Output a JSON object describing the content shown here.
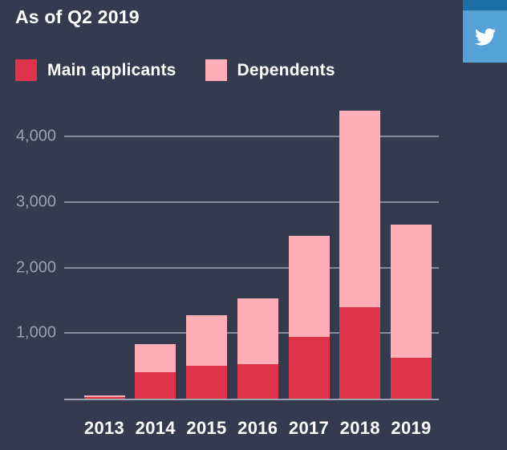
{
  "header": {
    "title": "As of Q2 2019"
  },
  "share": {
    "icon": "twitter-icon",
    "button_color": "#55a2d6",
    "strip_color": "#1b6fa6",
    "bird_color": "#ffffff"
  },
  "legend": [
    {
      "label": "Main applicants",
      "color": "#de3349"
    },
    {
      "label": "Dependents",
      "color": "#ffafb5"
    }
  ],
  "colors": {
    "background": "#343b4f",
    "gridline": "#99a0ad",
    "tick_text": "#9aa1af",
    "text": "#ffffff"
  },
  "chart_data": {
    "type": "bar",
    "stacked": true,
    "title": "As of Q2 2019",
    "categories": [
      "2013",
      "2014",
      "2015",
      "2016",
      "2017",
      "2018",
      "2019"
    ],
    "series": [
      {
        "name": "Main applicants",
        "color": "#de3349",
        "values": [
          25,
          400,
          500,
          530,
          940,
          1400,
          620
        ]
      },
      {
        "name": "Dependents",
        "color": "#ffafb5",
        "values": [
          30,
          430,
          770,
          1000,
          1540,
          3000,
          2040
        ]
      }
    ],
    "totals": [
      55,
      830,
      1270,
      1530,
      2480,
      4400,
      2660
    ],
    "xlabel": "",
    "ylabel": "",
    "yticks": [
      1000,
      2000,
      3000,
      4000
    ],
    "ytick_labels": [
      "1,000",
      "2,000",
      "3,000",
      "4,000"
    ],
    "ylim": [
      0,
      4500
    ],
    "grid": true,
    "legend_position": "top-left"
  }
}
